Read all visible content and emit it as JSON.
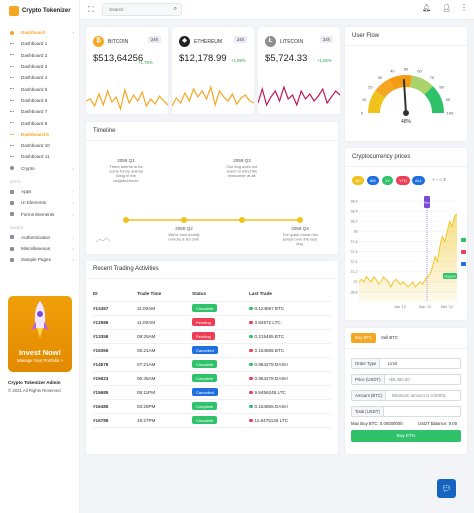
{
  "app": {
    "title": "Crypto Tokenizer"
  },
  "search": {
    "placeholder": "Search"
  },
  "sidebar": {
    "dashboard_label": "Dashboard",
    "items": [
      "Dashboard 1",
      "Dashboard 2",
      "Dashboard 3",
      "Dashboard 4",
      "Dashboard 5",
      "Dashboard 6",
      "Dashboard 7",
      "Dashboard 8",
      "Dashboard 9",
      "Dashboard 10",
      "Dashboard 11"
    ],
    "active_index": 8,
    "crypto_label": "Crypto",
    "section_apps": "APPS",
    "apps": [
      "Apps",
      "UI Elements",
      "Forms Elements"
    ],
    "section_pages": "PAGES",
    "pages": [
      "Authentication",
      "Miscellaneous",
      "Sample Pages"
    ],
    "promo": {
      "title": "Invest Now!",
      "subtitle": "Manage Your Portfolio >"
    },
    "footer_title": "Crypto Tokenizer Admin",
    "footer_copy": "© 2021 All Rights Reserved"
  },
  "coins": [
    {
      "name": "BITCOIN",
      "period": "24h",
      "price": "$513,64256",
      "change": "+1,75%",
      "color": "#f5a623",
      "symbol": "₿"
    },
    {
      "name": "ETHEREUM",
      "period": "24h",
      "price": "$12,178.99",
      "change": "+1,89%",
      "color": "#222222",
      "symbol": "◆"
    },
    {
      "name": "LITECOIN",
      "period": "24h",
      "price": "$5,724.33",
      "change": "+1,85%",
      "color": "#8e8e8e",
      "symbol": "Ł"
    }
  ],
  "timeline": {
    "title": "Timeline",
    "events": [
      {
        "date": "2058 Q1",
        "text": "There seems to be some funny animal living in the neighborhood."
      },
      {
        "date": "2058 Q2",
        "text": "We're now mostly remote & it's chill."
      },
      {
        "date": "2058 Q3",
        "text": "Our dog does not seem to mind the newcomer at all."
      },
      {
        "date": "2058 Q4",
        "text": "The quick brown fox jumps over the lazy dog."
      }
    ]
  },
  "user_flow": {
    "title": "User Flow",
    "value": "48%",
    "ticks": [
      "0",
      "10",
      "20",
      "30",
      "40",
      "50",
      "60",
      "70",
      "80",
      "90",
      "100"
    ],
    "gauge_value": 48
  },
  "price_chart": {
    "title": "Cryptocurrency prices",
    "ranges": [
      "1M",
      "6M",
      "1Y",
      "YTD",
      "ALL"
    ],
    "marker_label": "Buy",
    "support_label": "Support",
    "x_labels": [
      "Jan '12",
      "Sep '12",
      "Dec '12"
    ]
  },
  "chart_data": {
    "type": "area",
    "y_ticks": [
      0,
      36.8,
      37,
      37.2,
      37.4,
      37.6,
      37.8,
      38,
      38.2,
      38.4,
      38.6
    ],
    "x_labels": [
      "Jan '12",
      "Sep '12",
      "Dec '12"
    ]
  },
  "trades": {
    "title": "Recent Trading Activities",
    "columns": [
      "ID",
      "Trade Time",
      "Status",
      "Last Trade"
    ],
    "rows": [
      {
        "id": "#12457",
        "time": "11:00AM",
        "status": "Complete",
        "last": "0.124587 BTC",
        "up": true
      },
      {
        "id": "#12586",
        "time": "11:00AM",
        "status": "Pending",
        "last": "3.84572 LTC",
        "up": false
      },
      {
        "id": "#13358",
        "time": "09:25AM",
        "status": "Pending",
        "last": "0.215485 BTC",
        "up": true
      },
      {
        "id": "#15366",
        "time": "08:21AM",
        "status": "Cancelled",
        "last": "0.154585 BTC",
        "up": false
      },
      {
        "id": "#14578",
        "time": "07:21AM",
        "status": "Complete",
        "last": "0.954278 DASH",
        "up": true
      },
      {
        "id": "#15623",
        "time": "06:45AM",
        "status": "Complete",
        "last": "0.954278 DASH",
        "up": false
      },
      {
        "id": "#15685",
        "time": "05:11PM",
        "status": "Cancelled",
        "last": "9.8456245 LTC",
        "up": false
      },
      {
        "id": "#16485",
        "time": "03:28PM",
        "status": "Complete",
        "last": "0.154855 DASH",
        "up": true
      },
      {
        "id": "#16785",
        "time": "19:27PM",
        "status": "Complete",
        "last": "11.8475125 LTC",
        "up": false
      }
    ]
  },
  "trade_form": {
    "tab_buy": "Buy BTC",
    "tab_sell": "Sell BTC",
    "order_type_label": "Order Type",
    "order_type_value": "Limit",
    "price_label": "Price (USDT)",
    "price_placeholder": "~$9,450.00",
    "amount_label": "Amount (BTC)",
    "amount_placeholder": "Minimum amount is 0.00001",
    "total_label": "Total (USDT)",
    "max_buy": "Max Buy BTC: 0.00000000",
    "balance": "USDT Balance: 0.00",
    "submit": "Buy ETH"
  },
  "colors": {
    "accent": "#f5a623",
    "green": "#2fc26b",
    "red": "#ef3d55",
    "blue": "#1f6fe0",
    "gold": "#f1c21b"
  }
}
